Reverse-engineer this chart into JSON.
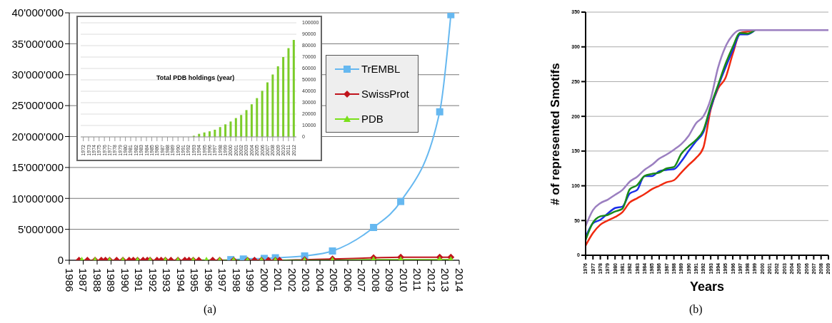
{
  "chart_data": [
    {
      "type": "line",
      "xlim": [
        1986,
        2014
      ],
      "xticks": [
        1986,
        1987,
        1988,
        1989,
        1990,
        1991,
        1992,
        1993,
        1994,
        1995,
        1996,
        1997,
        1998,
        1999,
        2000,
        2001,
        2002,
        2003,
        2004,
        2005,
        2006,
        2007,
        2008,
        2009,
        2010,
        2011,
        2012,
        2013,
        2014
      ],
      "ylim": [
        0,
        40000000
      ],
      "yticks": [
        0,
        {
          "value": 5000000,
          "label": "5'000'000"
        },
        {
          "value": 10000000,
          "label": "10'000'000"
        },
        {
          "value": 15000000,
          "label": "15'000'000"
        },
        {
          "value": 20000000,
          "label": "20'000'000"
        },
        {
          "value": 25000000,
          "label": "25'000'000"
        },
        {
          "value": 30000000,
          "label": "30'000'000"
        },
        {
          "value": 35000000,
          "label": "35'000'000"
        },
        {
          "value": 40000000,
          "label": "40'000'000"
        }
      ],
      "grid": "y",
      "legend": "top right",
      "annotations": [
        "(a)"
      ],
      "series": [
        {
          "name": "TrEMBL",
          "color": "#66b8f0",
          "marker": "square",
          "x": [
            1997.6,
            1998.5,
            2000.0,
            2000.8,
            2002.9,
            2004.9,
            2007.85,
            2009.8,
            2012.6,
            2013.4
          ],
          "values": [
            100000,
            200000,
            300000,
            400000,
            700000,
            1500000,
            5300000,
            9500000,
            24000000,
            39700000
          ]
        },
        {
          "name": "SwissProt",
          "color": "#c0141c",
          "marker": "diamond",
          "x": [
            1986.7,
            1987.3,
            1987.85,
            1988.3,
            1988.6,
            1988.9,
            1989.4,
            1989.85,
            1990.3,
            1990.6,
            1990.9,
            1991.3,
            1991.6,
            1991.8,
            1992.3,
            1992.6,
            1992.9,
            1993.3,
            1993.8,
            1994.3,
            1994.6,
            1994.9,
            1995.3,
            1996.3,
            1996.8,
            1997.8,
            1998.8,
            1999.3,
            1999.8,
            2000.3,
            2000.8,
            2001.1,
            2002.9,
            2004.9,
            2007.85,
            2009.8,
            2012.6,
            2013.4
          ],
          "values": [
            0,
            0,
            0,
            0,
            0,
            0,
            0,
            0,
            0,
            0,
            0,
            0,
            0,
            0,
            0,
            0,
            0,
            0,
            0,
            0,
            0,
            0,
            0,
            0,
            0,
            0,
            0,
            0,
            0,
            0,
            0,
            0,
            100000,
            200000,
            400000,
            500000,
            500000,
            500000
          ]
        },
        {
          "name": "PDB",
          "color": "#7ae01a",
          "marker": "triangle",
          "x": [
            1986.9,
            1987.85,
            1988.9,
            1989.85,
            1990.9,
            1991.8,
            1992.9,
            1993.8,
            1994.9,
            1995.85,
            1996.8,
            1997.8,
            1998.8,
            1999.8,
            2000.8,
            2002.9,
            2004.9,
            2007.85,
            2009.8,
            2012.6,
            2013.4
          ],
          "values": [
            0,
            0,
            0,
            0,
            0,
            0,
            0,
            0,
            0,
            0,
            0,
            0,
            0,
            0,
            0,
            0,
            0,
            100000,
            100000,
            100000,
            100000
          ]
        }
      ]
    },
    {
      "type": "bar",
      "title": "Total PDB holdings (year)",
      "color": "#7ccc2a",
      "grid": "y",
      "categories": [
        "1972",
        "1973",
        "1974",
        "1975",
        "1976",
        "1977",
        "1978",
        "1979",
        "1980",
        "1981",
        "1982",
        "1983",
        "1984",
        "1985",
        "1986",
        "1987",
        "1988",
        "1989",
        "1990",
        "1991",
        "1992",
        "1993",
        "1994",
        "1995",
        "1996",
        "1997",
        "1998",
        "1999",
        "2000",
        "2001",
        "2002",
        "2003",
        "2004",
        "2005",
        "2006",
        "2007",
        "2008",
        "2009",
        "2010",
        "2011",
        "2012"
      ],
      "values": [
        0,
        0,
        0,
        0,
        0,
        0,
        0,
        0,
        0,
        0,
        0,
        0,
        0,
        0,
        0,
        0,
        0,
        0,
        0,
        0,
        0,
        1000,
        2700,
        3900,
        4900,
        6300,
        8600,
        11000,
        13500,
        16500,
        19200,
        23500,
        28600,
        34000,
        40400,
        47800,
        54700,
        61900,
        70000,
        77800,
        85000
      ],
      "ylim": [
        0,
        100000
      ],
      "yticks": [
        0,
        10000,
        20000,
        30000,
        40000,
        50000,
        60000,
        70000,
        80000,
        90000,
        100000
      ]
    },
    {
      "type": "line",
      "xlabel": "Years",
      "ylabel": "# of represented Smotifs",
      "grid": "y",
      "annotations": [
        "(b)"
      ],
      "categories": [
        "1976",
        "1977",
        "1978",
        "1979",
        "1980",
        "1981",
        "1982",
        "1983",
        "1984",
        "1985",
        "1986",
        "1987",
        "1988",
        "1989",
        "1990",
        "1991",
        "1992",
        "1993",
        "1994",
        "1995",
        "1996",
        "1997",
        "1998",
        "1999",
        "2000",
        "2001",
        "2002",
        "2003",
        "2004",
        "2005",
        "2006",
        "2007",
        "2008",
        "2009"
      ],
      "ylim": [
        0,
        350
      ],
      "yticks": [
        0,
        50,
        100,
        150,
        200,
        250,
        300,
        350
      ],
      "series": [
        {
          "color": "#f02a10",
          "values": [
            14,
            32,
            44,
            50,
            55,
            62,
            76,
            82,
            88,
            95,
            100,
            105,
            108,
            119,
            130,
            140,
            155,
            210,
            240,
            255,
            290,
            320,
            322,
            324,
            null,
            null,
            null,
            null,
            null,
            null,
            null,
            null,
            null,
            null
          ]
        },
        {
          "color": "#1a2ee8",
          "values": [
            26,
            46,
            51,
            60,
            68,
            70,
            89,
            94,
            114,
            114,
            121,
            123,
            124,
            135,
            150,
            164,
            177,
            212,
            243,
            270,
            295,
            318,
            318,
            324,
            null,
            null,
            null,
            null,
            null,
            null,
            null,
            null,
            null,
            null
          ]
        },
        {
          "color": "#1a8a1a",
          "values": [
            22,
            47,
            56,
            58,
            63,
            67,
            95,
            101,
            114,
            117,
            119,
            125,
            127,
            146,
            157,
            166,
            180,
            215,
            245,
            275,
            300,
            320,
            319,
            324,
            null,
            null,
            null,
            null,
            null,
            null,
            null,
            null,
            null,
            null
          ]
        },
        {
          "color": "#9b7fc0",
          "values": [
            42,
            65,
            75,
            80,
            87,
            94,
            106,
            113,
            123,
            130,
            139,
            145,
            152,
            160,
            172,
            190,
            200,
            225,
            270,
            300,
            317,
            324,
            324,
            324,
            324,
            324,
            324,
            324,
            324,
            324,
            324,
            324,
            324,
            324
          ]
        }
      ]
    }
  ]
}
